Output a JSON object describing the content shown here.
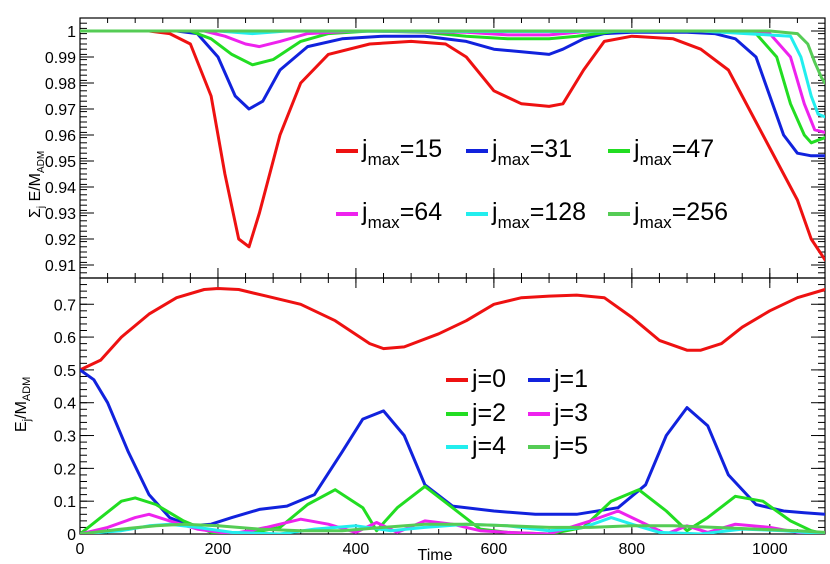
{
  "chart_data": [
    {
      "type": "line",
      "ylabel": "Σj E/MADM",
      "ylabel_parts": {
        "sigma": "Σ",
        "sigma_sub": "j",
        "main": " E/M",
        "main_sub": "ADM"
      },
      "xlim": [
        0,
        1080
      ],
      "ylim": [
        0.905,
        1.005
      ],
      "yticks": [
        "1",
        "0.99",
        "0.98",
        "0.97",
        "0.96",
        "0.95",
        "0.94",
        "0.93",
        "0.92",
        "0.91"
      ],
      "ytick_values": [
        1.0,
        0.99,
        0.98,
        0.97,
        0.96,
        0.95,
        0.94,
        0.93,
        0.92,
        0.91
      ],
      "legend_position": "center-right",
      "series": [
        {
          "name": "jmax=15",
          "label_main": "j",
          "label_sub": "max",
          "label_tail": "=15",
          "color": "#ee1111",
          "x": [
            0,
            100,
            130,
            160,
            190,
            210,
            230,
            245,
            260,
            290,
            320,
            360,
            420,
            480,
            530,
            560,
            600,
            640,
            680,
            700,
            730,
            760,
            800,
            860,
            900,
            940,
            980,
            1000,
            1020,
            1040,
            1060,
            1080
          ],
          "y": [
            1.0,
            1.0,
            0.999,
            0.995,
            0.975,
            0.945,
            0.92,
            0.917,
            0.93,
            0.96,
            0.98,
            0.991,
            0.995,
            0.996,
            0.995,
            0.99,
            0.977,
            0.972,
            0.971,
            0.972,
            0.985,
            0.996,
            0.998,
            0.997,
            0.993,
            0.985,
            0.965,
            0.955,
            0.945,
            0.935,
            0.92,
            0.912
          ]
        },
        {
          "name": "jmax=31",
          "label_main": "j",
          "label_sub": "max",
          "label_tail": "=31",
          "color": "#1122dd",
          "x": [
            0,
            140,
            170,
            200,
            225,
            245,
            265,
            290,
            330,
            380,
            440,
            500,
            560,
            600,
            640,
            680,
            700,
            730,
            760,
            800,
            880,
            920,
            950,
            980,
            1000,
            1020,
            1040,
            1060,
            1080
          ],
          "y": [
            1.0,
            1.0,
            0.999,
            0.99,
            0.975,
            0.97,
            0.973,
            0.985,
            0.994,
            0.997,
            0.998,
            0.998,
            0.996,
            0.993,
            0.992,
            0.991,
            0.993,
            0.997,
            0.999,
            0.9995,
            0.9995,
            0.999,
            0.997,
            0.99,
            0.975,
            0.96,
            0.953,
            0.952,
            0.952
          ]
        },
        {
          "name": "jmax=47",
          "label_main": "j",
          "label_sub": "max",
          "label_tail": "=47",
          "color": "#22dd22",
          "x": [
            0,
            160,
            190,
            220,
            250,
            280,
            320,
            360,
            420,
            500,
            560,
            620,
            680,
            720,
            780,
            900,
            980,
            1010,
            1030,
            1050,
            1060,
            1070,
            1080
          ],
          "y": [
            1.0,
            1.0,
            0.997,
            0.991,
            0.987,
            0.989,
            0.996,
            0.999,
            1.0,
            0.9995,
            0.998,
            0.997,
            0.997,
            0.998,
            1.0,
            1.0,
            0.999,
            0.99,
            0.972,
            0.96,
            0.957,
            0.958,
            0.959
          ]
        },
        {
          "name": "jmax=64",
          "label_main": "j",
          "label_sub": "max",
          "label_tail": "=64",
          "color": "#ee22ee",
          "x": [
            0,
            180,
            210,
            240,
            260,
            290,
            330,
            400,
            560,
            620,
            680,
            740,
            900,
            1000,
            1030,
            1050,
            1065,
            1080
          ],
          "y": [
            1.0,
            1.0,
            0.998,
            0.995,
            0.994,
            0.996,
            0.999,
            1.0,
            0.9995,
            0.9985,
            0.9985,
            1.0,
            1.0,
            0.999,
            0.99,
            0.972,
            0.962,
            0.961
          ]
        },
        {
          "name": "jmax=128",
          "label_main": "j",
          "label_sub": "max",
          "label_tail": "=128",
          "color": "#22eeee",
          "x": [
            0,
            200,
            250,
            300,
            600,
            680,
            900,
            1030,
            1045,
            1060,
            1070,
            1080
          ],
          "y": [
            1.0,
            1.0,
            0.999,
            1.0,
            0.9998,
            0.9998,
            1.0,
            0.998,
            0.99,
            0.975,
            0.968,
            0.967
          ]
        },
        {
          "name": "jmax=256",
          "label_main": "j",
          "label_sub": "max",
          "label_tail": "=256",
          "color": "#55cc55",
          "x": [
            0,
            1000,
            1040,
            1055,
            1065,
            1075,
            1080
          ],
          "y": [
            1.0,
            1.0,
            0.999,
            0.995,
            0.988,
            0.982,
            0.98
          ]
        }
      ]
    },
    {
      "type": "line",
      "xlabel": "Time",
      "ylabel": "Ej/MADM",
      "ylabel_parts": {
        "main": "E",
        "main_sub": "j",
        "tail": "/M",
        "tail_sub": "ADM"
      },
      "xlim": [
        0,
        1080
      ],
      "ylim": [
        0,
        0.78
      ],
      "xticks": [
        "0",
        "200",
        "400",
        "600",
        "800",
        "1000"
      ],
      "xtick_values": [
        0,
        200,
        400,
        600,
        800,
        1000
      ],
      "yticks": [
        "0",
        "0.1",
        "0.2",
        "0.3",
        "0.4",
        "0.5",
        "0.6",
        "0.7"
      ],
      "ytick_values": [
        0,
        0.1,
        0.2,
        0.3,
        0.4,
        0.5,
        0.6,
        0.7
      ],
      "legend_position": "center-right",
      "series": [
        {
          "name": "j=0",
          "color": "#ee1111",
          "x": [
            0,
            30,
            60,
            100,
            140,
            180,
            200,
            230,
            270,
            320,
            370,
            420,
            440,
            470,
            520,
            560,
            600,
            640,
            680,
            720,
            760,
            800,
            840,
            880,
            900,
            930,
            960,
            1000,
            1040,
            1080
          ],
          "y": [
            0.5,
            0.53,
            0.6,
            0.67,
            0.72,
            0.745,
            0.748,
            0.745,
            0.725,
            0.7,
            0.65,
            0.58,
            0.565,
            0.57,
            0.61,
            0.65,
            0.7,
            0.72,
            0.725,
            0.728,
            0.72,
            0.66,
            0.59,
            0.56,
            0.56,
            0.58,
            0.63,
            0.68,
            0.72,
            0.745
          ]
        },
        {
          "name": "j=1",
          "color": "#1122dd",
          "x": [
            0,
            20,
            40,
            70,
            100,
            130,
            160,
            190,
            220,
            260,
            300,
            340,
            380,
            410,
            440,
            470,
            500,
            540,
            600,
            660,
            720,
            780,
            820,
            850,
            880,
            910,
            940,
            980,
            1020,
            1050,
            1080
          ],
          "y": [
            0.5,
            0.47,
            0.4,
            0.25,
            0.12,
            0.05,
            0.025,
            0.03,
            0.05,
            0.075,
            0.085,
            0.12,
            0.25,
            0.35,
            0.375,
            0.3,
            0.15,
            0.085,
            0.07,
            0.06,
            0.06,
            0.08,
            0.15,
            0.3,
            0.385,
            0.33,
            0.18,
            0.09,
            0.07,
            0.065,
            0.06
          ]
        },
        {
          "name": "j=2",
          "color": "#22dd22",
          "x": [
            0,
            30,
            60,
            80,
            110,
            150,
            190,
            240,
            290,
            330,
            370,
            410,
            430,
            460,
            500,
            540,
            580,
            620,
            680,
            730,
            770,
            810,
            850,
            880,
            910,
            950,
            990,
            1030,
            1060,
            1080
          ],
          "y": [
            0,
            0.05,
            0.1,
            0.11,
            0.09,
            0.04,
            0.005,
            0.0,
            0.02,
            0.09,
            0.135,
            0.08,
            0.01,
            0.08,
            0.145,
            0.08,
            0.015,
            0.005,
            0.0,
            0.02,
            0.1,
            0.135,
            0.07,
            0.01,
            0.05,
            0.115,
            0.1,
            0.04,
            0.01,
            0.0
          ]
        },
        {
          "name": "j=3",
          "color": "#ee22ee",
          "x": [
            0,
            40,
            80,
            100,
            130,
            170,
            220,
            270,
            320,
            360,
            400,
            430,
            460,
            500,
            540,
            580,
            620,
            680,
            740,
            780,
            810,
            850,
            880,
            910,
            950,
            1000,
            1040,
            1080
          ],
          "y": [
            0,
            0.02,
            0.05,
            0.06,
            0.04,
            0.015,
            0.0,
            0.02,
            0.045,
            0.03,
            0.005,
            0.035,
            0.005,
            0.04,
            0.03,
            0.01,
            0.005,
            0.0,
            0.04,
            0.07,
            0.04,
            0.0,
            0.025,
            0.005,
            0.03,
            0.02,
            0.005,
            0.0
          ]
        },
        {
          "name": "j=4",
          "color": "#22eeee",
          "x": [
            0,
            60,
            100,
            130,
            170,
            220,
            290,
            340,
            400,
            450,
            500,
            560,
            620,
            680,
            730,
            770,
            800,
            840,
            900,
            960,
            1020,
            1080
          ],
          "y": [
            0,
            0.01,
            0.025,
            0.03,
            0.02,
            0.005,
            0.0,
            0.015,
            0.025,
            0.01,
            0.02,
            0.03,
            0.025,
            0.01,
            0.02,
            0.05,
            0.03,
            0.005,
            0.0,
            0.015,
            0.01,
            0.0
          ]
        },
        {
          "name": "j=5",
          "color": "#55cc55",
          "x": [
            0,
            60,
            110,
            150,
            200,
            260,
            320,
            380,
            440,
            500,
            560,
            620,
            680,
            740,
            800,
            860,
            920,
            980,
            1040,
            1080
          ],
          "y": [
            0,
            0.015,
            0.025,
            0.03,
            0.025,
            0.015,
            0.01,
            0.01,
            0.02,
            0.03,
            0.03,
            0.025,
            0.02,
            0.02,
            0.025,
            0.025,
            0.02,
            0.015,
            0.01,
            0.005
          ]
        }
      ]
    }
  ]
}
